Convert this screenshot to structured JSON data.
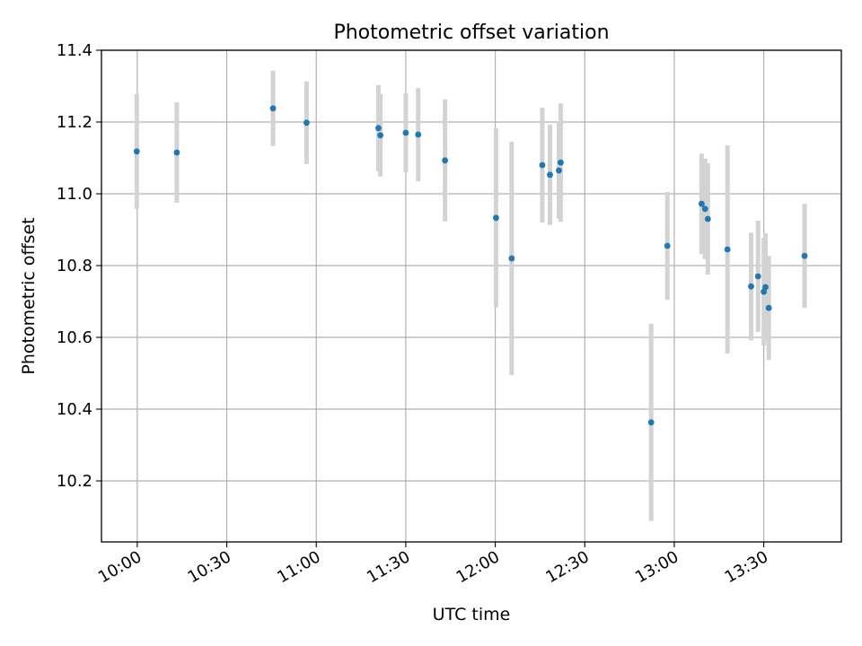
{
  "chart_data": {
    "type": "scatter",
    "title": "Photometric offset variation",
    "xlabel": "UTC time",
    "ylabel": "Photometric offset",
    "grid": true,
    "xlim": [
      "09:48",
      "13:56"
    ],
    "ylim": [
      10.03,
      11.4
    ],
    "x_ticks": [
      "10:00",
      "10:30",
      "11:00",
      "11:30",
      "12:00",
      "12:30",
      "13:00",
      "13:30"
    ],
    "y_ticks": [
      10.2,
      10.4,
      10.6,
      10.8,
      11.0,
      11.2,
      11.4
    ],
    "y_tick_labels": [
      "10.2",
      "10.4",
      "10.6",
      "10.8",
      "11.0",
      "11.2",
      "11.4"
    ],
    "series": [
      {
        "name": "Photometric offset",
        "marker_color": "#1f77b4",
        "errorbar_color": "#d3d3d3",
        "points": [
          {
            "t": "09:59:50",
            "y": 11.118,
            "err": 0.16
          },
          {
            "t": "10:13:15",
            "y": 11.115,
            "err": 0.14
          },
          {
            "t": "10:45:30",
            "y": 11.238,
            "err": 0.105
          },
          {
            "t": "10:56:45",
            "y": 11.198,
            "err": 0.115
          },
          {
            "t": "11:20:50",
            "y": 11.183,
            "err": 0.12
          },
          {
            "t": "11:21:30",
            "y": 11.163,
            "err": 0.115
          },
          {
            "t": "11:30:00",
            "y": 11.17,
            "err": 0.11
          },
          {
            "t": "11:34:10",
            "y": 11.165,
            "err": 0.13
          },
          {
            "t": "11:43:10",
            "y": 11.093,
            "err": 0.17
          },
          {
            "t": "12:00:15",
            "y": 10.933,
            "err": 0.25
          },
          {
            "t": "12:05:30",
            "y": 10.82,
            "err": 0.325
          },
          {
            "t": "12:15:45",
            "y": 11.08,
            "err": 0.16
          },
          {
            "t": "12:18:20",
            "y": 11.053,
            "err": 0.14
          },
          {
            "t": "12:21:20",
            "y": 11.065,
            "err": 0.135
          },
          {
            "t": "12:21:55",
            "y": 11.087,
            "err": 0.165
          },
          {
            "t": "12:52:15",
            "y": 10.363,
            "err": 0.275
          },
          {
            "t": "12:57:40",
            "y": 10.855,
            "err": 0.15
          },
          {
            "t": "13:09:10",
            "y": 10.972,
            "err": 0.14
          },
          {
            "t": "13:10:20",
            "y": 10.958,
            "err": 0.14
          },
          {
            "t": "13:11:15",
            "y": 10.93,
            "err": 0.155
          },
          {
            "t": "13:17:50",
            "y": 10.845,
            "err": 0.29
          },
          {
            "t": "13:25:45",
            "y": 10.742,
            "err": 0.15
          },
          {
            "t": "13:28:05",
            "y": 10.77,
            "err": 0.155
          },
          {
            "t": "13:30:00",
            "y": 10.727,
            "err": 0.15
          },
          {
            "t": "13:30:35",
            "y": 10.74,
            "err": 0.15
          },
          {
            "t": "13:31:40",
            "y": 10.682,
            "err": 0.145
          },
          {
            "t": "13:43:40",
            "y": 10.827,
            "err": 0.145
          }
        ]
      }
    ]
  }
}
